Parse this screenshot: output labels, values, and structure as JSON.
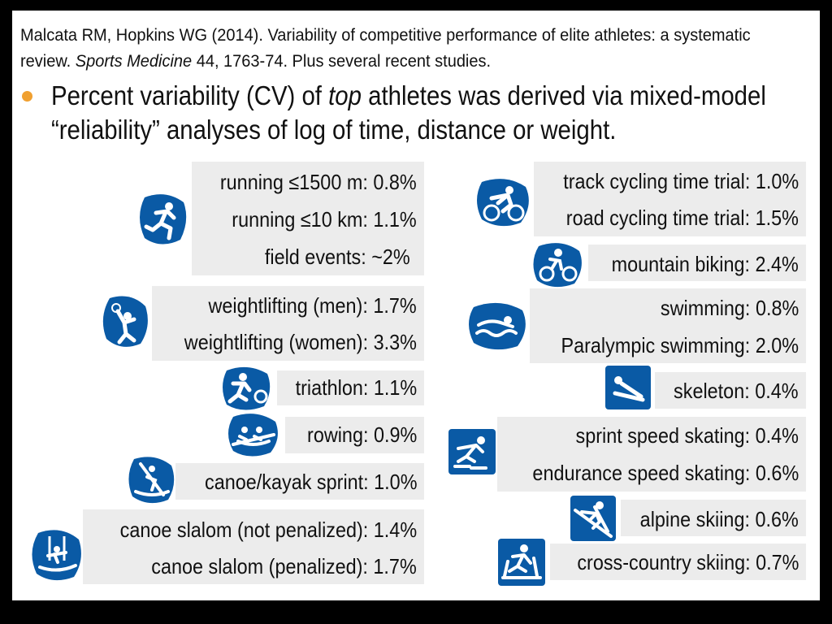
{
  "citation": {
    "part1": "Malcata RM, Hopkins WG (2014). Variability of competitive performance of elite athletes: a systematic review. ",
    "journal": "Sports Medicine",
    "part2": " 44, 1763-74. Plus several recent studies."
  },
  "bullet": {
    "part1": "Percent variability (CV) of ",
    "emphasis": "top",
    "part2": " athletes was derived via mixed-model “reliability” analyses of log of time, distance or weight."
  },
  "colors": {
    "icon_blue": "#0a5aa5",
    "box_grey": "#ececec",
    "bullet_dot": "#f0a030"
  },
  "left_column": {
    "running": [
      "running ≤1500 m: 0.8%",
      "running ≤10 km: 1.1%",
      "field events: ~2%"
    ],
    "weightlifting": [
      "weightlifting (men): 1.7%",
      "weightlifting (women): 3.3%"
    ],
    "triathlon": [
      "triathlon: 1.1%"
    ],
    "rowing": [
      "rowing: 0.9%"
    ],
    "canoe_sprint": [
      "canoe/kayak sprint: 1.0%"
    ],
    "canoe_slalom": [
      "canoe slalom (not penalized): 1.4%",
      "canoe slalom (penalized): 1.7%"
    ]
  },
  "right_column": {
    "cycling": [
      "track cycling time trial: 1.0%",
      "road cycling time trial: 1.5%"
    ],
    "mountain_biking": [
      "mountain biking: 2.4%"
    ],
    "swimming": [
      "swimming: 0.8%",
      "Paralympic swimming: 2.0%"
    ],
    "skeleton": [
      "skeleton: 0.4%"
    ],
    "speed_skating": [
      "sprint speed skating: 0.4%",
      "endurance speed skating: 0.6%"
    ],
    "alpine_skiing": [
      "alpine skiing: 0.6%"
    ],
    "cross_country_skiing": [
      "cross-country skiing: 0.7%"
    ]
  },
  "icons": [
    "running-icon",
    "weightlifting-icon",
    "triathlon-icon",
    "rowing-icon",
    "canoe-sprint-icon",
    "canoe-slalom-icon",
    "track-cycling-icon",
    "mountain-biking-icon",
    "swimming-icon",
    "skeleton-icon",
    "speed-skating-icon",
    "alpine-skiing-icon",
    "cross-country-skiing-icon"
  ]
}
